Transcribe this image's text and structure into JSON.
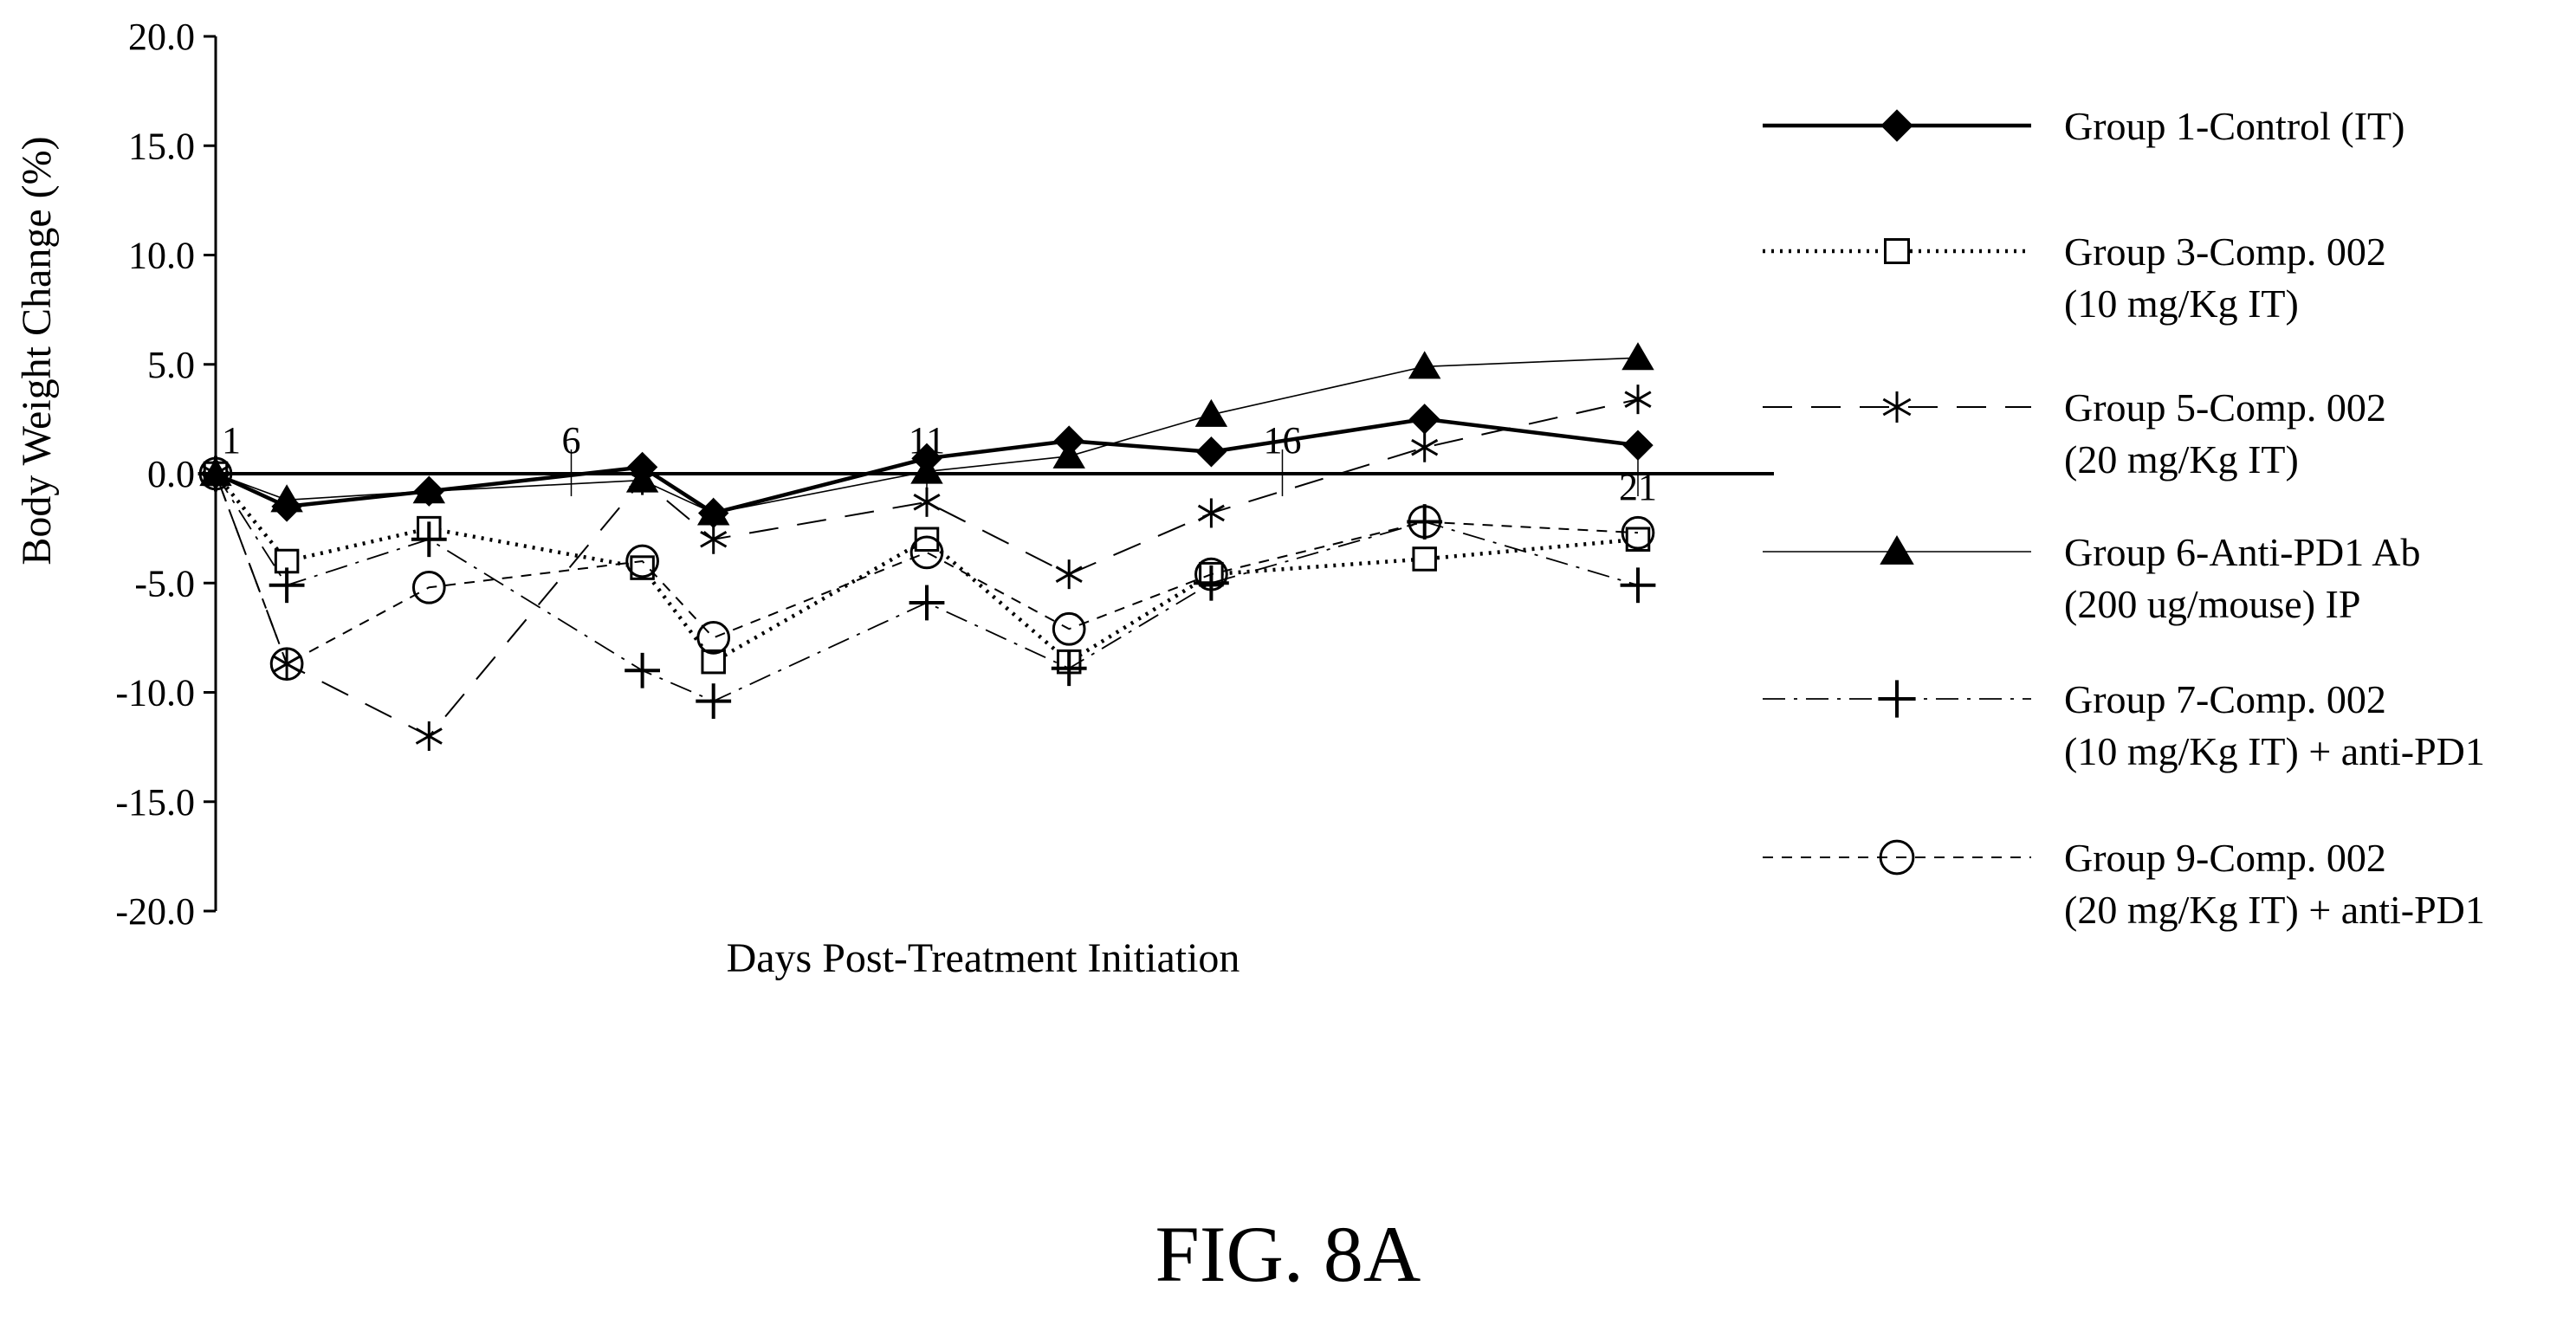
{
  "figure_label": "FIG. 8A",
  "chart_data": {
    "type": "line",
    "xlabel": "Days Post-Treatment Initiation",
    "ylabel": "Body Weight Change (%)",
    "ylim": [
      -20,
      20
    ],
    "xlim": [
      1,
      24
    ],
    "y_ticks": [
      "20.0",
      "15.0",
      "10.0",
      "5.0",
      "0.0",
      "-5.0",
      "-10.0",
      "-15.0",
      "-20.0"
    ],
    "x_ticks": [
      "1",
      "6",
      "11",
      "16",
      "21"
    ],
    "grid": false,
    "legend_position": "right",
    "series": [
      {
        "name": "Group 1-Control (IT)",
        "legend_lines": [
          "Group 1-Control (IT)"
        ],
        "marker": "diamond",
        "line_style": "solid-thick",
        "x": [
          1,
          2,
          4,
          7,
          8,
          11,
          13,
          15,
          18,
          21
        ],
        "y": [
          0,
          -1.5,
          -0.8,
          0.3,
          -1.8,
          0.7,
          1.5,
          1.0,
          2.5,
          1.3
        ]
      },
      {
        "name": "Group 3-Comp. 002 (10 mg/Kg IT)",
        "legend_lines": [
          "Group 3-Comp. 002",
          "(10 mg/Kg IT)"
        ],
        "marker": "square",
        "line_style": "dotted",
        "x": [
          1,
          2,
          4,
          7,
          8,
          11,
          13,
          15,
          18,
          21
        ],
        "y": [
          0,
          -4.0,
          -2.5,
          -4.3,
          -8.6,
          -3.0,
          -8.6,
          -4.6,
          -3.9,
          -3.0
        ]
      },
      {
        "name": "Group 5-Comp. 002 (20 mg/Kg IT)",
        "legend_lines": [
          "Group 5-Comp. 002",
          "(20 mg/Kg IT)"
        ],
        "marker": "asterisk",
        "line_style": "long-dash",
        "x": [
          1,
          2,
          4,
          7,
          8,
          11,
          13,
          15,
          18,
          21
        ],
        "y": [
          0,
          -8.7,
          -12.0,
          -0.3,
          -3.0,
          -1.3,
          -4.6,
          -1.8,
          1.2,
          3.4
        ]
      },
      {
        "name": "Group 6-Anti-PD1 Ab (200 ug/mouse) IP",
        "legend_lines": [
          "Group 6-Anti-PD1 Ab",
          "(200 ug/mouse) IP"
        ],
        "marker": "triangle",
        "line_style": "solid-thin",
        "x": [
          1,
          2,
          4,
          7,
          8,
          11,
          13,
          15,
          18,
          21
        ],
        "y": [
          0,
          -1.2,
          -0.8,
          -0.3,
          -1.8,
          0.1,
          0.8,
          2.7,
          4.9,
          5.3
        ]
      },
      {
        "name": "Group 7-Comp. 002 (10 mg/Kg IT) + anti-PD1",
        "legend_lines": [
          "Group 7-Comp. 002",
          "(10 mg/Kg IT) + anti-PD1"
        ],
        "marker": "plus",
        "line_style": "dash-dot",
        "x": [
          1,
          2,
          4,
          7,
          8,
          11,
          13,
          15,
          18,
          21
        ],
        "y": [
          0,
          -5.1,
          -3.0,
          -9.0,
          -10.4,
          -5.9,
          -8.9,
          -5.0,
          -2.2,
          -5.1
        ]
      },
      {
        "name": "Group 9-Comp. 002 (20 mg/Kg IT) + anti-PD1",
        "legend_lines": [
          "Group 9-Comp. 002",
          "(20 mg/Kg IT) + anti-PD1"
        ],
        "marker": "circle",
        "line_style": "short-dash",
        "x": [
          1,
          2,
          4,
          7,
          8,
          11,
          13,
          15,
          18,
          21
        ],
        "y": [
          0,
          -8.7,
          -5.2,
          -4.0,
          -7.5,
          -3.6,
          -7.1,
          -4.6,
          -2.2,
          -2.7
        ]
      }
    ]
  }
}
